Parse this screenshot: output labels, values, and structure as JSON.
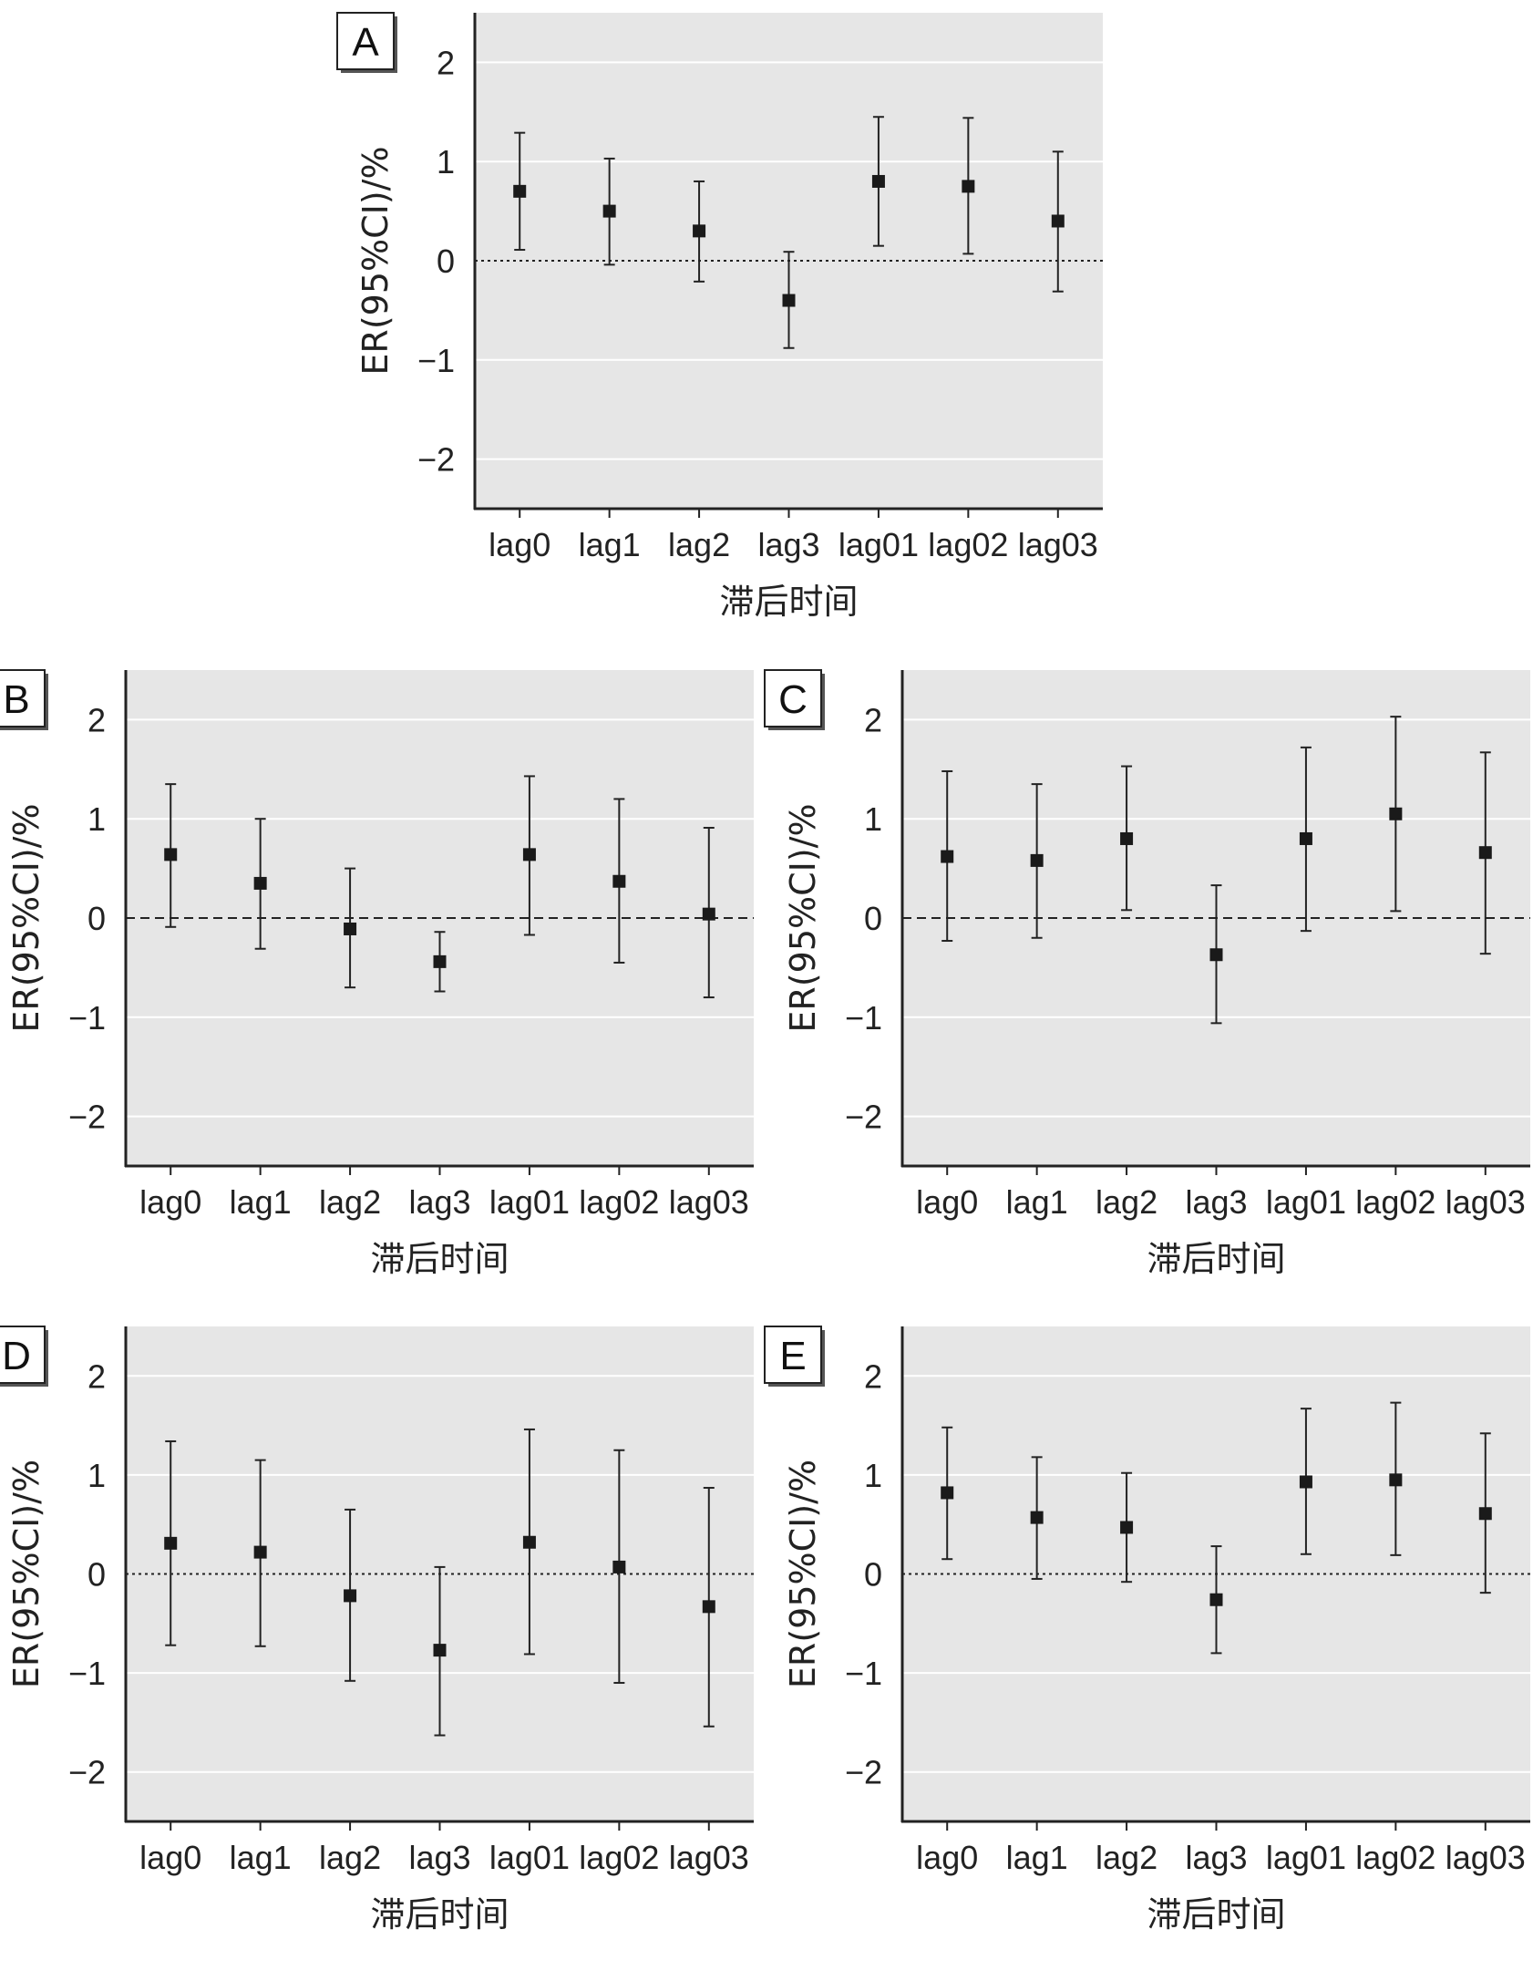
{
  "chart_data": [
    {
      "panel": "A",
      "type": "scatter",
      "categories": [
        "lag0",
        "lag1",
        "lag2",
        "lag3",
        "lag01",
        "lag02",
        "lag03"
      ],
      "values": [
        0.7,
        0.5,
        0.3,
        -0.4,
        0.8,
        0.75,
        0.4
      ],
      "lower": [
        0.11,
        -0.04,
        -0.21,
        -0.88,
        0.15,
        0.07,
        -0.31
      ],
      "upper": [
        1.29,
        1.03,
        0.8,
        0.09,
        1.45,
        1.44,
        1.1
      ],
      "xlabel": "滞后时间",
      "ylabel": "ER(95%CI)/%",
      "ylim": [
        -2.5,
        2.5
      ],
      "yticks": [
        "−2",
        "−1",
        "0",
        "1",
        "2"
      ],
      "reference_line": "dotted"
    },
    {
      "panel": "B",
      "type": "scatter",
      "categories": [
        "lag0",
        "lag1",
        "lag2",
        "lag3",
        "lag01",
        "lag02",
        "lag03"
      ],
      "values": [
        0.64,
        0.35,
        -0.11,
        -0.44,
        0.64,
        0.37,
        0.04
      ],
      "lower": [
        -0.09,
        -0.31,
        -0.7,
        -0.74,
        -0.17,
        -0.45,
        -0.8
      ],
      "upper": [
        1.35,
        1.0,
        0.5,
        -0.14,
        1.43,
        1.2,
        0.91
      ],
      "xlabel": "滞后时间",
      "ylabel": "ER(95%CI)/%",
      "ylim": [
        -2.5,
        2.5
      ],
      "yticks": [
        "−2",
        "−1",
        "0",
        "1",
        "2"
      ],
      "reference_line": "dashed"
    },
    {
      "panel": "C",
      "type": "scatter",
      "categories": [
        "lag0",
        "lag1",
        "lag2",
        "lag3",
        "lag01",
        "lag02",
        "lag03"
      ],
      "values": [
        0.62,
        0.58,
        0.8,
        -0.37,
        0.8,
        1.05,
        0.66
      ],
      "lower": [
        -0.23,
        -0.2,
        0.08,
        -1.06,
        -0.13,
        0.07,
        -0.36
      ],
      "upper": [
        1.48,
        1.35,
        1.53,
        0.33,
        1.72,
        2.03,
        1.67
      ],
      "xlabel": "滞后时间",
      "ylabel": "ER(95%CI)/%",
      "ylim": [
        -2.5,
        2.5
      ],
      "yticks": [
        "−2",
        "−1",
        "0",
        "1",
        "2"
      ],
      "reference_line": "dashed"
    },
    {
      "panel": "D",
      "type": "scatter",
      "categories": [
        "lag0",
        "lag1",
        "lag2",
        "lag3",
        "lag01",
        "lag02",
        "lag03"
      ],
      "values": [
        0.31,
        0.22,
        -0.22,
        -0.77,
        0.32,
        0.07,
        -0.33
      ],
      "lower": [
        -0.72,
        -0.73,
        -1.08,
        -1.63,
        -0.81,
        -1.1,
        -1.54
      ],
      "upper": [
        1.34,
        1.15,
        0.65,
        0.07,
        1.46,
        1.25,
        0.87
      ],
      "xlabel": "滞后时间",
      "ylabel": "ER(95%CI)/%",
      "ylim": [
        -2.5,
        2.5
      ],
      "yticks": [
        "−2",
        "−1",
        "0",
        "1",
        "2"
      ],
      "reference_line": "dotted"
    },
    {
      "panel": "E",
      "type": "scatter",
      "categories": [
        "lag0",
        "lag1",
        "lag2",
        "lag3",
        "lag01",
        "lag02",
        "lag03"
      ],
      "values": [
        0.82,
        0.57,
        0.47,
        -0.26,
        0.93,
        0.95,
        0.61
      ],
      "lower": [
        0.15,
        -0.05,
        -0.08,
        -0.8,
        0.2,
        0.19,
        -0.19
      ],
      "upper": [
        1.48,
        1.18,
        1.02,
        0.28,
        1.67,
        1.73,
        1.42
      ],
      "xlabel": "滞后时间",
      "ylabel": "ER(95%CI)/%",
      "ylim": [
        -2.5,
        2.5
      ],
      "yticks": [
        "−2",
        "−1",
        "0",
        "1",
        "2"
      ],
      "reference_line": "dotted"
    }
  ],
  "style": {
    "plot_bg": "#e6e6e6",
    "grid_color": "#ffffff",
    "axis_color": "#222222",
    "marker_color": "#1a1a1a"
  }
}
